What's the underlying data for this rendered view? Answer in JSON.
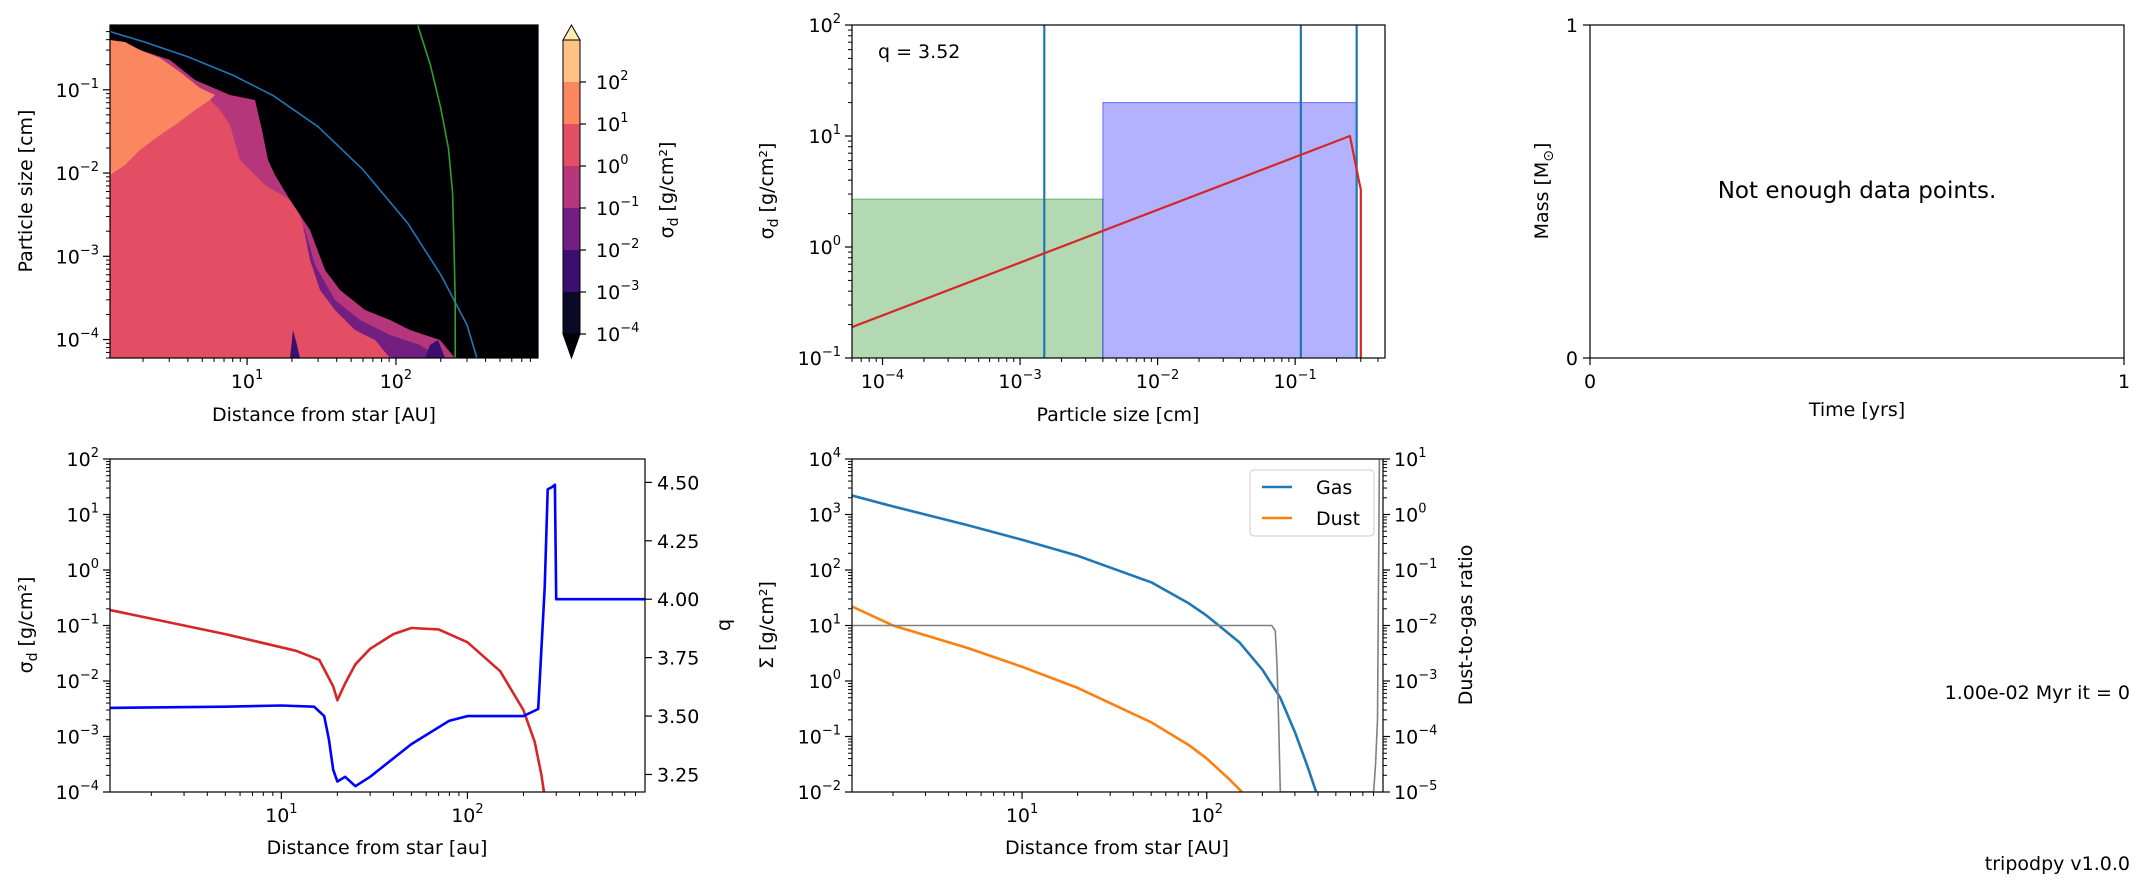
{
  "chart_data": [
    {
      "type": "heatmap",
      "panel": "dust-size-distribution",
      "xlabel": "Distance from star [AU]",
      "ylabel": "Particle size [cm]",
      "xscale": "log",
      "yscale": "log",
      "xlim": [
        1.2,
        900
      ],
      "ylim": [
        6e-05,
        0.6
      ],
      "xticks": [
        {
          "v": 10,
          "label": "10",
          "sup": "1"
        },
        {
          "v": 100,
          "label": "10",
          "sup": "2"
        }
      ],
      "yticks": [
        {
          "v": 0.0001,
          "label": "10",
          "sup": "−4"
        },
        {
          "v": 0.001,
          "label": "10",
          "sup": "−3"
        },
        {
          "v": 0.01,
          "label": "10",
          "sup": "−2"
        },
        {
          "v": 0.1,
          "label": "10",
          "sup": "−1"
        }
      ],
      "colorbar": {
        "label": "σ",
        "label_sub": "d",
        "label_tail": " [g/cm²]",
        "levels_exp": [
          -4,
          -3,
          -2,
          -1,
          0,
          1,
          2
        ],
        "ticks": [
          {
            "label": "10",
            "sup": "−4"
          },
          {
            "label": "10",
            "sup": "−3"
          },
          {
            "label": "10",
            "sup": "−2"
          },
          {
            "label": "10",
            "sup": "−1"
          },
          {
            "label": "10",
            "sup": "0"
          },
          {
            "label": "10",
            "sup": "1"
          },
          {
            "label": "10",
            "sup": "2"
          }
        ],
        "colors": [
          "#0c0927",
          "#3b0f70",
          "#721f81",
          "#b5367a",
          "#e34e65",
          "#fb8761",
          "#fec287"
        ],
        "over_color": "#fcecad",
        "under_color": "#000004"
      },
      "lines": [
        {
          "name": "fragmentation-limit",
          "color": "#1f77b4",
          "x": [
            1.2,
            2,
            4,
            8,
            15,
            30,
            60,
            120,
            200,
            300,
            350
          ],
          "y": [
            0.5,
            0.38,
            0.25,
            0.15,
            0.085,
            0.036,
            0.011,
            0.0025,
            0.0006,
            0.00015,
            6e-05
          ]
        },
        {
          "name": "drift-limit",
          "color": "#2ca02c",
          "x": [
            140,
            170,
            200,
            225,
            240,
            245,
            250,
            250
          ],
          "y": [
            0.6,
            0.2,
            0.06,
            0.02,
            0.006,
            0.0015,
            0.0003,
            6e-05
          ]
        }
      ]
    },
    {
      "type": "bar",
      "panel": "size-distribution-at-radius",
      "annotation": "q = 3.52",
      "xlabel": "Particle size [cm]",
      "ylabel": "σ",
      "ylabel_sub": "d",
      "ylabel_tail": " [g/cm²]",
      "xscale": "log",
      "yscale": "log",
      "xlim": [
        6e-05,
        0.45
      ],
      "ylim": [
        0.1,
        100
      ],
      "xticks": [
        {
          "v": 0.0001,
          "label": "10",
          "sup": "−4"
        },
        {
          "v": 0.001,
          "label": "10",
          "sup": "−3"
        },
        {
          "v": 0.01,
          "label": "10",
          "sup": "−2"
        },
        {
          "v": 0.1,
          "label": "10",
          "sup": "−1"
        }
      ],
      "yticks": [
        {
          "v": 0.1,
          "label": "10",
          "sup": "−1"
        },
        {
          "v": 1,
          "label": "10",
          "sup": "0"
        },
        {
          "v": 10,
          "label": "10",
          "sup": "1"
        },
        {
          "v": 100,
          "label": "10",
          "sup": "2"
        }
      ],
      "boxes": [
        {
          "name": "small-population",
          "x0": 6e-05,
          "x1": 0.004,
          "y": 2.7,
          "color": "#008000"
        },
        {
          "name": "large-population",
          "x0": 0.004,
          "x1": 0.28,
          "y": 20,
          "color": "#0000ff"
        }
      ],
      "vlines": [
        0.0015,
        0.11,
        0.28
      ],
      "vline_color": "#1f77b4",
      "line": {
        "color": "#d62728",
        "x": [
          6e-05,
          0.25,
          0.29,
          0.3,
          0.3
        ],
        "y": [
          0.19,
          10,
          4,
          3.3,
          0.1
        ]
      }
    },
    {
      "type": "line",
      "panel": "mass-evolution",
      "message": "Not enough data points.",
      "xlabel": "Time [yrs]",
      "ylabel": "Mass [M",
      "ylabel_sym": "⊙",
      "ylabel_tail": "]",
      "xlim": [
        0,
        1
      ],
      "ylim": [
        0,
        1
      ],
      "xticks": [
        {
          "v": 0,
          "label": "0"
        },
        {
          "v": 1,
          "label": "1"
        }
      ],
      "yticks": [
        {
          "v": 0,
          "label": "0"
        },
        {
          "v": 1,
          "label": "1"
        }
      ]
    },
    {
      "type": "line",
      "panel": "sigma-and-q-profile",
      "xlabel": "Distance from star [au]",
      "ylabel": "σ",
      "ylabel_sub": "d",
      "ylabel_tail": " [g/cm²]",
      "y2label": "q",
      "xscale": "log",
      "yscale": "log",
      "xlim": [
        1.2,
        900
      ],
      "ylim": [
        0.0001,
        100
      ],
      "y2lim": [
        3.175,
        4.6
      ],
      "xticks": [
        {
          "v": 10,
          "label": "10",
          "sup": "1"
        },
        {
          "v": 100,
          "label": "10",
          "sup": "2"
        }
      ],
      "yticks": [
        {
          "v": 0.0001,
          "label": "10",
          "sup": "−4"
        },
        {
          "v": 0.001,
          "label": "10",
          "sup": "−3"
        },
        {
          "v": 0.01,
          "label": "10",
          "sup": "−2"
        },
        {
          "v": 0.1,
          "label": "10",
          "sup": "−1"
        },
        {
          "v": 1,
          "label": "10",
          "sup": "0"
        },
        {
          "v": 10,
          "label": "10",
          "sup": "1"
        },
        {
          "v": 100,
          "label": "10",
          "sup": "2"
        }
      ],
      "y2ticks": [
        "3.25",
        "3.50",
        "3.75",
        "4.00",
        "4.25",
        "4.50"
      ],
      "series": [
        {
          "axis": "left",
          "color": "#d62728",
          "x": [
            1.2,
            5,
            12,
            16,
            19,
            20,
            22,
            25,
            30,
            40,
            50,
            70,
            100,
            150,
            200,
            230,
            250,
            260,
            270
          ],
          "y": [
            0.19,
            0.07,
            0.035,
            0.024,
            0.008,
            0.0045,
            0.009,
            0.02,
            0.038,
            0.07,
            0.09,
            0.085,
            0.05,
            0.015,
            0.003,
            0.0008,
            0.0002,
            8e-05,
            3e-05
          ]
        },
        {
          "axis": "right",
          "color": "#0000ff",
          "x": [
            1.2,
            5,
            10,
            15,
            17,
            18,
            19,
            20,
            22,
            25,
            30,
            50,
            80,
            100,
            200,
            240,
            260,
            270,
            285,
            295,
            300,
            900
          ],
          "y": [
            3.535,
            3.54,
            3.545,
            3.54,
            3.5,
            3.4,
            3.27,
            3.22,
            3.24,
            3.2,
            3.24,
            3.38,
            3.48,
            3.5,
            3.5,
            3.53,
            4.05,
            4.47,
            4.48,
            4.49,
            4.0,
            4.0
          ]
        }
      ]
    },
    {
      "type": "line",
      "panel": "surface-density-profile",
      "xlabel": "Distance from star [AU]",
      "ylabel": "Σ [g/cm²]",
      "y2label": "Dust-to-gas ratio",
      "xscale": "log",
      "yscale": "log",
      "xlim": [
        1.2,
        900
      ],
      "ylim": [
        0.01,
        10000
      ],
      "y2lim": [
        1e-05,
        10
      ],
      "xticks": [
        {
          "v": 10,
          "label": "10",
          "sup": "1"
        },
        {
          "v": 100,
          "label": "10",
          "sup": "2"
        }
      ],
      "yticks": [
        {
          "v": 0.01,
          "label": "10",
          "sup": "−2"
        },
        {
          "v": 0.1,
          "label": "10",
          "sup": "−1"
        },
        {
          "v": 1,
          "label": "10",
          "sup": "0"
        },
        {
          "v": 10,
          "label": "10",
          "sup": "1"
        },
        {
          "v": 100,
          "label": "10",
          "sup": "2"
        },
        {
          "v": 1000,
          "label": "10",
          "sup": "3"
        },
        {
          "v": 10000,
          "label": "10",
          "sup": "4"
        }
      ],
      "y2ticks": [
        {
          "v": 1e-05,
          "label": "10",
          "sup": "−5"
        },
        {
          "v": 0.0001,
          "label": "10",
          "sup": "−4"
        },
        {
          "v": 0.001,
          "label": "10",
          "sup": "−3"
        },
        {
          "v": 0.01,
          "label": "10",
          "sup": "−2"
        },
        {
          "v": 0.1,
          "label": "10",
          "sup": "−1"
        },
        {
          "v": 1,
          "label": "10",
          "sup": "0"
        },
        {
          "v": 10,
          "label": "10",
          "sup": "1"
        }
      ],
      "series": [
        {
          "name": "Gas",
          "axis": "left",
          "color": "#1f77b4",
          "x": [
            1.2,
            2,
            5,
            10,
            20,
            50,
            80,
            100,
            150,
            200,
            250,
            300,
            350,
            400
          ],
          "y": [
            2200,
            1400,
            650,
            350,
            180,
            60,
            25,
            15,
            5,
            1.6,
            0.5,
            0.12,
            0.03,
            0.008
          ]
        },
        {
          "name": "Dust",
          "axis": "left",
          "color": "#ff7f0e",
          "x": [
            1.2,
            2,
            5,
            10,
            20,
            50,
            80,
            100,
            130,
            160,
            170
          ],
          "y": [
            22,
            10,
            4,
            1.8,
            0.75,
            0.18,
            0.07,
            0.04,
            0.018,
            0.009,
            0.006
          ]
        },
        {
          "name": "dust-to-gas",
          "axis": "right",
          "color": "#808080",
          "x": [
            1.2,
            200,
            225,
            235,
            240,
            245,
            250,
            800,
            820,
            840,
            860
          ],
          "y": [
            0.01,
            0.01,
            0.01,
            0.008,
            0.002,
            0.0002,
            1e-05,
            1e-05,
            3e-05,
            0.0002,
            10
          ]
        }
      ],
      "legend": {
        "placement": "top-right",
        "entries": [
          "Gas",
          "Dust"
        ]
      }
    }
  ],
  "status": {
    "time_label": "1.00e-02 Myr it = 0",
    "version_label": "tripodpy v1.0.0"
  }
}
